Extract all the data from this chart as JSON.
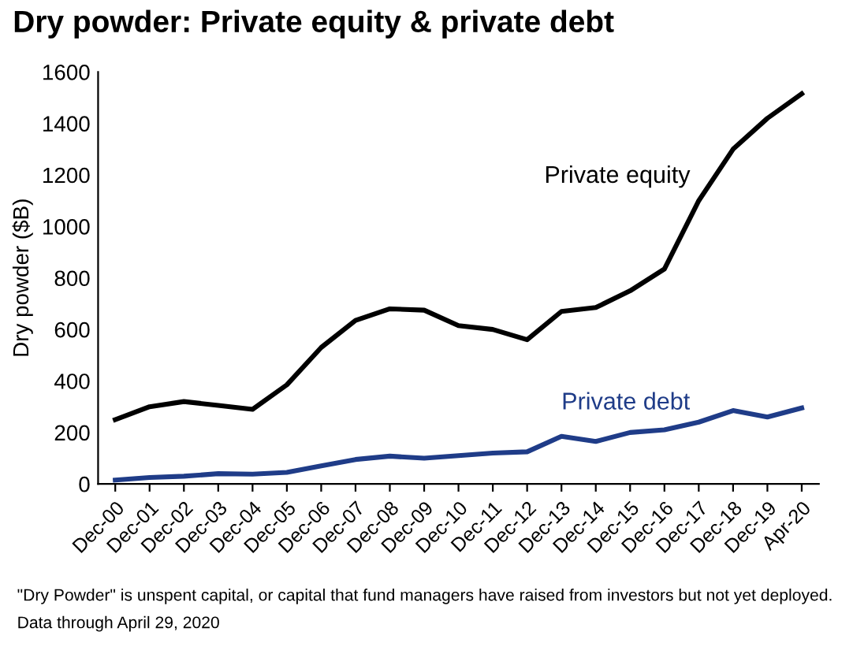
{
  "chart_data": {
    "type": "line",
    "title": "Dry powder: Private equity & private debt",
    "ylabel": "Dry powder ($B)",
    "categories": [
      "Dec-00",
      "Dec-01",
      "Dec-02",
      "Dec-03",
      "Dec-04",
      "Dec-05",
      "Dec-06",
      "Dec-07",
      "Dec-08",
      "Dec-09",
      "Dec-10",
      "Dec-11",
      "Dec-12",
      "Dec-13",
      "Dec-14",
      "Dec-15",
      "Dec-16",
      "Dec-17",
      "Dec-18",
      "Dec-19",
      "Apr-20"
    ],
    "series": [
      {
        "name": "Private equity",
        "color": "#000000",
        "values": [
          250,
          300,
          320,
          305,
          290,
          385,
          530,
          635,
          680,
          675,
          615,
          600,
          560,
          670,
          685,
          750,
          835,
          1100,
          1300,
          1420,
          1515
        ]
      },
      {
        "name": "Private debt",
        "color": "#1f3c88",
        "values": [
          15,
          25,
          30,
          40,
          38,
          45,
          70,
          95,
          108,
          100,
          110,
          120,
          125,
          185,
          165,
          200,
          210,
          240,
          285,
          260,
          295
        ]
      }
    ],
    "ylim": [
      0,
      1600
    ],
    "yticks": [
      0,
      200,
      400,
      600,
      800,
      1000,
      1200,
      1400,
      1600
    ],
    "grid": false,
    "legend": false,
    "marker": "none",
    "line_style": "solid",
    "annotations": [
      "\"Dry Powder\" is unspent capital, or capital that fund managers have raised from investors but not yet deployed.",
      "Data through April 29, 2020"
    ]
  }
}
